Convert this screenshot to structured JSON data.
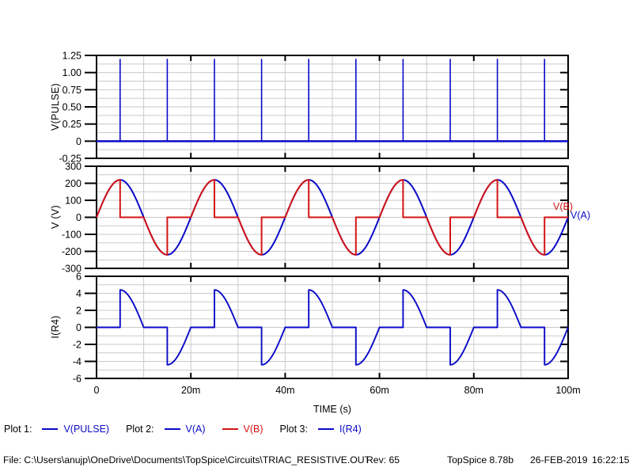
{
  "window": {
    "background": "#ffffff"
  },
  "colors": {
    "trace_blue": "#0a0ac8",
    "trace_red": "#d41414",
    "grid": "#c9c9c9",
    "frame": "#000000"
  },
  "chart_data": {
    "type": "line",
    "x_axis": {
      "label": "TIME  (s)",
      "min_ms": 0,
      "max_ms": 100,
      "major_tick_ms": 20,
      "grid_ms": 10,
      "tick_labels": [
        {
          "t_ms": 0,
          "label": "0"
        },
        {
          "t_ms": 20,
          "label": "20m"
        },
        {
          "t_ms": 40,
          "label": "40m"
        },
        {
          "t_ms": 60,
          "label": "60m"
        },
        {
          "t_ms": 80,
          "label": "80m"
        },
        {
          "t_ms": 100,
          "label": "100m"
        }
      ]
    },
    "plots": [
      {
        "name": "plot-1",
        "ylabel": "V(PULSE)",
        "ymin": -0.25,
        "ymax": 1.25,
        "grid_step": 0.125,
        "yticks": [
          {
            "v": 1.25,
            "label": "1.25"
          },
          {
            "v": 1.0,
            "label": "1.00"
          },
          {
            "v": 0.75,
            "label": "0.75"
          },
          {
            "v": 0.5,
            "label": "0.50"
          },
          {
            "v": 0.25,
            "label": "0.25"
          },
          {
            "v": 0,
            "label": "0"
          },
          {
            "v": -0.25,
            "label": "-0.25"
          }
        ],
        "series": [
          {
            "name": "V(PULSE)",
            "color": "#0a0ac8",
            "kind": "pulse_train",
            "baseline": 0,
            "pulse_height": 1.2,
            "first_pulse_ms": 5,
            "period_ms": 10,
            "count": 10
          }
        ]
      },
      {
        "name": "plot-2",
        "ylabel": "V  (V)",
        "ymin": -300,
        "ymax": 300,
        "grid_step": 50,
        "yticks": [
          {
            "v": 300,
            "label": "300"
          },
          {
            "v": 200,
            "label": "200"
          },
          {
            "v": 100,
            "label": "100"
          },
          {
            "v": 0,
            "label": "0"
          },
          {
            "v": -100,
            "label": "-100"
          },
          {
            "v": -200,
            "label": "-200"
          },
          {
            "v": -300,
            "label": "-300"
          }
        ],
        "series": [
          {
            "name": "V(A)",
            "color": "#0a0ac8",
            "kind": "sine",
            "amplitude": 220,
            "period_ms": 20
          },
          {
            "name": "V(B)",
            "color": "#d41414",
            "kind": "triac_phase_control",
            "amplitude": 220,
            "period_ms": 20,
            "fire_delay_ms": 5
          }
        ],
        "annotations": [
          {
            "text": "V(B)",
            "color": "#d41414"
          },
          {
            "text": "V(A)",
            "color": "#0a0ac8"
          }
        ]
      },
      {
        "name": "plot-3",
        "ylabel": "I(R4)",
        "ymin": -6,
        "ymax": 6,
        "grid_step": 1,
        "yticks": [
          {
            "v": 6,
            "label": "6"
          },
          {
            "v": 4,
            "label": "4"
          },
          {
            "v": 2,
            "label": "2"
          },
          {
            "v": 0,
            "label": "0"
          },
          {
            "v": -2,
            "label": "-2"
          },
          {
            "v": -4,
            "label": "-4"
          },
          {
            "v": -6,
            "label": "-6"
          }
        ],
        "series": [
          {
            "name": "I(R4)",
            "color": "#0a0ac8",
            "kind": "triac_load_current",
            "amplitude": 4.4,
            "period_ms": 20,
            "fire_delay_ms": 5
          }
        ]
      }
    ]
  },
  "legend": {
    "groups": [
      {
        "title": "Plot 1:",
        "entries": [
          {
            "label": "V(PULSE)",
            "color": "#0a0ac8"
          }
        ]
      },
      {
        "title": "Plot 2:",
        "entries": [
          {
            "label": "V(A)",
            "color": "#0a0ac8"
          },
          {
            "label": "V(B)",
            "color": "#d41414"
          }
        ]
      },
      {
        "title": "Plot 3:",
        "entries": [
          {
            "label": "I(R4)",
            "color": "#0a0ac8"
          }
        ]
      }
    ]
  },
  "status_bar": {
    "file": "File: C:\\Users\\anujp\\OneDrive\\Documents\\TopSpice\\Circuits\\TRIAC_RESISTIVE.OUT",
    "rev": "Rev: 65",
    "app": "TopSpice 8.78b",
    "date": "26-FEB-2019",
    "time": "16:22:15"
  }
}
